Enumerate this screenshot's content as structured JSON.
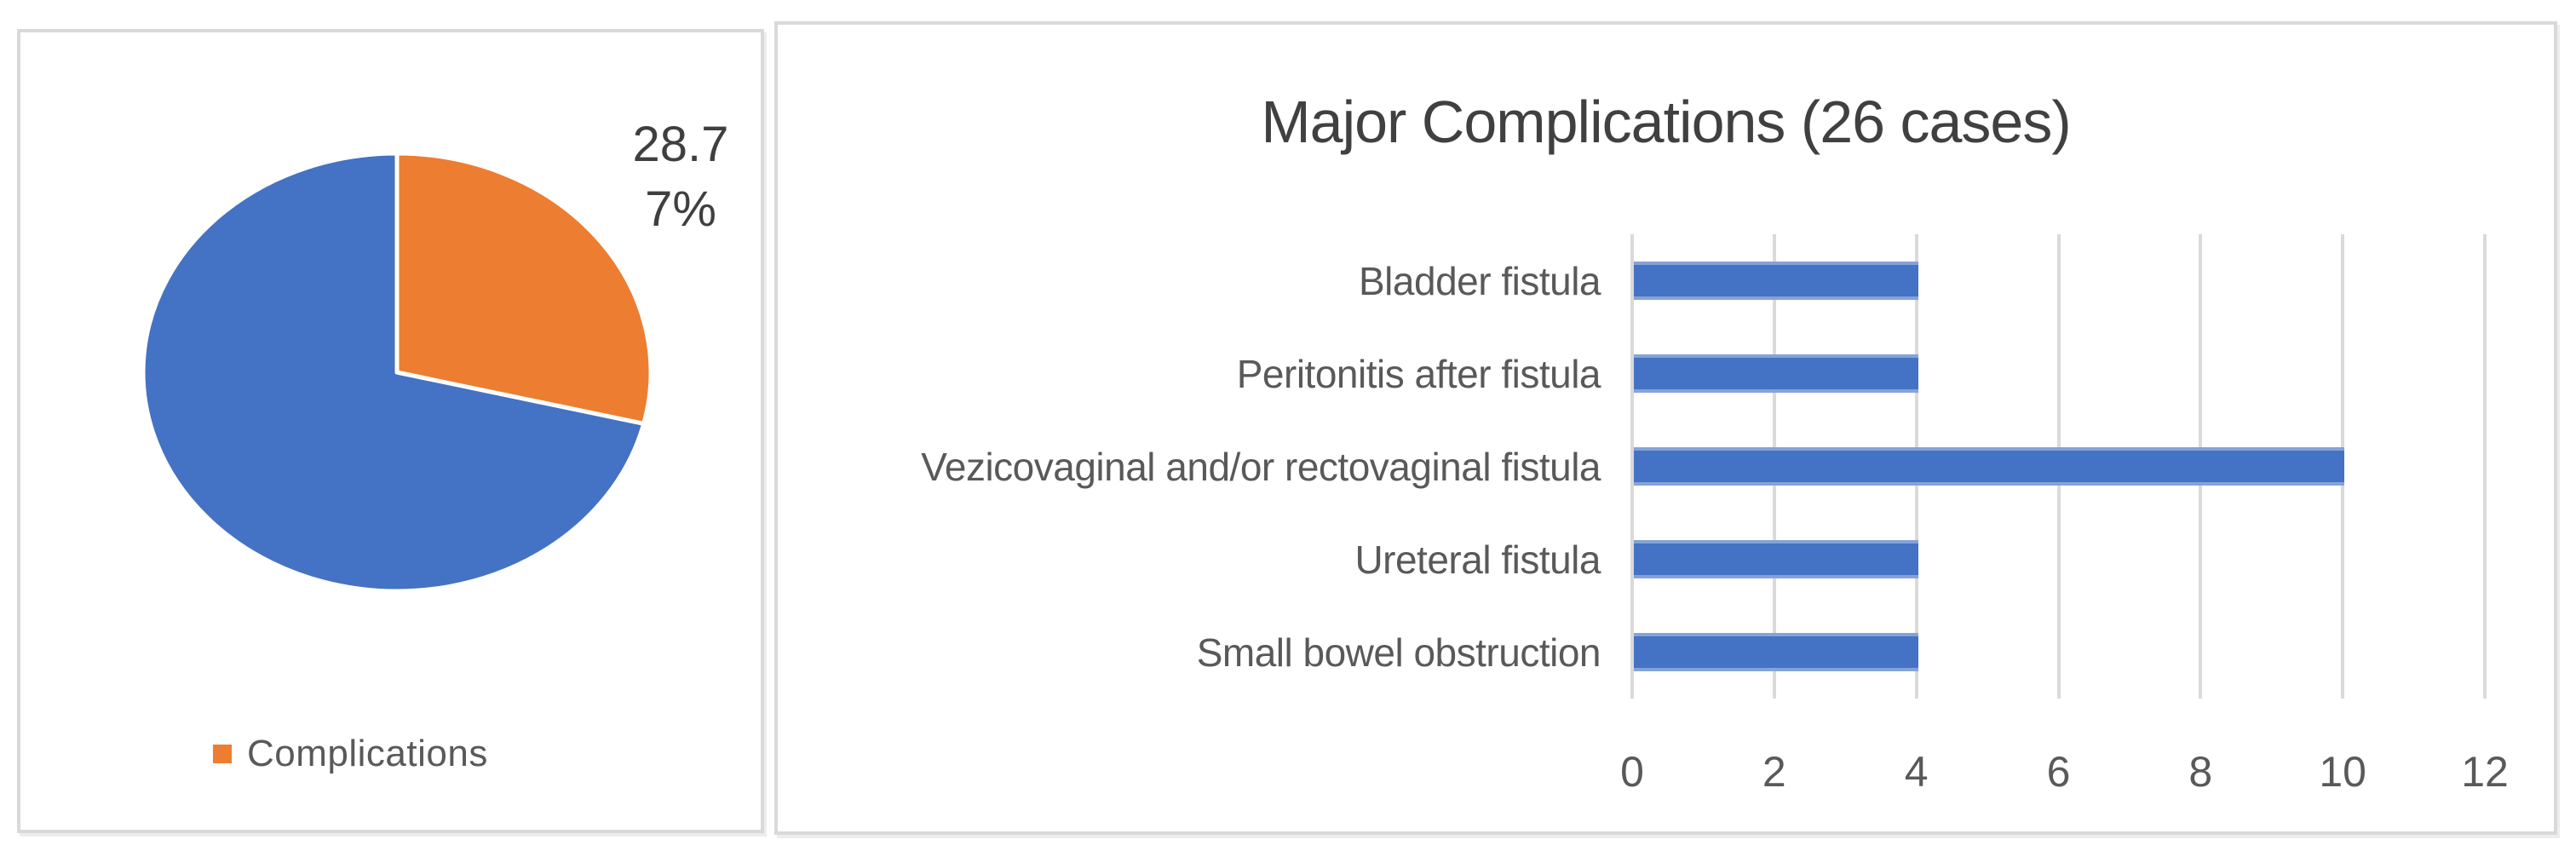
{
  "colors": {
    "series_blue": "#4472C4",
    "series_orange": "#ED7D31",
    "gridline": "#DADADA",
    "panel_border": "#D9D9D9",
    "axis_text": "#595959",
    "title_text": "#404040",
    "slice_border": "#FFFFFF"
  },
  "pie_panel": {
    "label_lines": [
      "28.7",
      "7%"
    ],
    "legend_label": "Complications"
  },
  "bar_panel": {
    "title": "Major Complications (26 cases)"
  },
  "chart_data": [
    {
      "type": "pie",
      "title": "",
      "slices": [
        {
          "label": "Complications",
          "value": 28.77,
          "color": "#ED7D31"
        },
        {
          "label": "",
          "value": 71.23,
          "color": "#4472C4"
        }
      ],
      "start_angle_deg": 0,
      "direction": "clockwise",
      "data_label_text": "28.77%",
      "data_label_lines": [
        "28.7",
        "7%"
      ],
      "legend_entries": [
        "Complications"
      ],
      "legend_position": "bottom"
    },
    {
      "type": "bar",
      "orientation": "horizontal",
      "title": "Major Complications (26 cases)",
      "categories": [
        "Bladder fistula",
        "Peritonitis after fistula",
        "Vezicovaginal and/or rectovaginal fistula",
        "Ureteral fistula",
        "Small bowel obstruction"
      ],
      "values": [
        4,
        4,
        10,
        4,
        4
      ],
      "xlabel": "",
      "ylabel": "",
      "xlim": [
        0,
        12
      ],
      "xticks": [
        0,
        2,
        4,
        6,
        8,
        10,
        12
      ],
      "grid": true,
      "legend_position": "none"
    }
  ]
}
